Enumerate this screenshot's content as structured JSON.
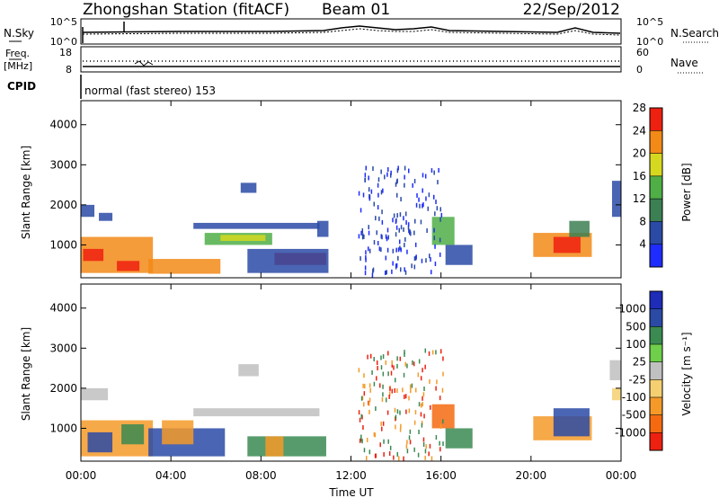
{
  "header": {
    "station": "Zhongshan Station (fitACF)",
    "beam": "Beam 01",
    "date": "22/Sep/2012",
    "mode": "normal (fast stereo) 153"
  },
  "noise_panel": {
    "left_label": "N.Sky",
    "right_label": "N.Search",
    "left_ticks": [
      "10^5",
      "10^0"
    ],
    "right_ticks": [
      "10^5",
      "10^0"
    ]
  },
  "freq_panel": {
    "left_label_1": "Freq.",
    "left_label_2": "[MHz]",
    "right_label": "Nave",
    "left_ticks": [
      "18",
      "8"
    ],
    "right_ticks": [
      "60",
      "0"
    ],
    "cpid_label": "CPID"
  },
  "chart_data": [
    {
      "type": "heatmap",
      "name": "power",
      "ylabel": "Slant Range [km]",
      "yticks": [
        1000,
        2000,
        3000,
        4000
      ],
      "ylim": [
        180,
        4600
      ],
      "xlim": [
        0,
        24
      ],
      "colorbar_label": "Power [dB]",
      "colorbar_ticks": [
        "4",
        "8",
        "12",
        "16",
        "20",
        "24",
        "28"
      ],
      "colorbar_colors": [
        "#1e2cff",
        "#2a4aa6",
        "#3c7f52",
        "#4fae46",
        "#d6d820",
        "#f28a18",
        "#ee2010"
      ],
      "regions": [
        {
          "t0": 0.0,
          "t1": 3.2,
          "r0": 300,
          "r1": 1200,
          "color": "#f28a18"
        },
        {
          "t0": 0.1,
          "t1": 1.0,
          "r0": 600,
          "r1": 900,
          "color": "#ee2010"
        },
        {
          "t0": 1.6,
          "t1": 2.6,
          "r0": 350,
          "r1": 600,
          "color": "#ee2010"
        },
        {
          "t0": 3.0,
          "t1": 6.2,
          "r0": 280,
          "r1": 650,
          "color": "#f28a18"
        },
        {
          "t0": 0.0,
          "t1": 0.6,
          "r0": 1700,
          "r1": 2000,
          "color": "#2a4aa6"
        },
        {
          "t0": 0.8,
          "t1": 1.4,
          "r0": 1600,
          "r1": 1800,
          "color": "#2a4aa6"
        },
        {
          "t0": 5.0,
          "t1": 10.6,
          "r0": 1400,
          "r1": 1550,
          "color": "#2a4aa6"
        },
        {
          "t0": 5.5,
          "t1": 8.5,
          "r0": 1000,
          "r1": 1300,
          "color": "#4fae46"
        },
        {
          "t0": 6.2,
          "t1": 8.2,
          "r0": 1100,
          "r1": 1250,
          "color": "#d6d820"
        },
        {
          "t0": 7.1,
          "t1": 7.8,
          "r0": 2300,
          "r1": 2550,
          "color": "#2a4aa6"
        },
        {
          "t0": 8.6,
          "t1": 10.9,
          "r0": 500,
          "r1": 800,
          "color": "#ee2010"
        },
        {
          "t0": 7.4,
          "t1": 11.0,
          "r0": 300,
          "r1": 900,
          "color": "#2a4aa6"
        },
        {
          "t0": 10.5,
          "t1": 11.0,
          "r0": 1200,
          "r1": 1600,
          "color": "#2a4aa6"
        },
        {
          "t0": 15.6,
          "t1": 16.6,
          "r0": 1000,
          "r1": 1700,
          "color": "#4fae46"
        },
        {
          "t0": 16.2,
          "t1": 17.4,
          "r0": 500,
          "r1": 1000,
          "color": "#2a4aa6"
        },
        {
          "t0": 20.1,
          "t1": 22.7,
          "r0": 700,
          "r1": 1300,
          "color": "#f28a18"
        },
        {
          "t0": 21.0,
          "t1": 22.2,
          "r0": 800,
          "r1": 1200,
          "color": "#ee2010"
        },
        {
          "t0": 21.7,
          "t1": 22.6,
          "r0": 1200,
          "r1": 1600,
          "color": "#3c7f52"
        },
        {
          "t0": 23.6,
          "t1": 24.0,
          "r0": 1700,
          "r1": 2600,
          "color": "#2a4aa6"
        }
      ]
    },
    {
      "type": "heatmap",
      "name": "velocity",
      "ylabel": "Slant Range [km]",
      "yticks": [
        1000,
        2000,
        3000,
        4000
      ],
      "ylim": [
        180,
        4600
      ],
      "xlim": [
        0,
        24
      ],
      "xticks": [
        "00:00",
        "04:00",
        "08:00",
        "12:00",
        "16:00",
        "20:00",
        "00:00"
      ],
      "xlabel": "Time UT",
      "colorbar_label": "Velocity [m s⁻¹]",
      "colorbar_ticks": [
        "-1000",
        "-500",
        "-100",
        "-25",
        "25",
        "100",
        "500",
        "1000"
      ],
      "colorbar_colors": [
        "#ee2010",
        "#f56a10",
        "#f59a28",
        "#f5d070",
        "#c0c0c0",
        "#6fcf4a",
        "#3a8a52",
        "#2a4aa6",
        "#1e2cb8"
      ],
      "regions": [
        {
          "t0": 0.0,
          "t1": 3.2,
          "r0": 300,
          "r1": 1200,
          "color": "#f59a28"
        },
        {
          "t0": 0.3,
          "t1": 1.4,
          "r0": 400,
          "r1": 900,
          "color": "#2a4aa6"
        },
        {
          "t0": 1.8,
          "t1": 2.8,
          "r0": 600,
          "r1": 1100,
          "color": "#3a8a52"
        },
        {
          "t0": 3.0,
          "t1": 6.4,
          "r0": 300,
          "r1": 1000,
          "color": "#2a4aa6"
        },
        {
          "t0": 3.6,
          "t1": 5.0,
          "r0": 600,
          "r1": 1200,
          "color": "#f59a28"
        },
        {
          "t0": 0.0,
          "t1": 1.2,
          "r0": 1700,
          "r1": 2000,
          "color": "#c0c0c0"
        },
        {
          "t0": 5.0,
          "t1": 10.6,
          "r0": 1300,
          "r1": 1500,
          "color": "#c0c0c0"
        },
        {
          "t0": 7.0,
          "t1": 7.9,
          "r0": 2300,
          "r1": 2600,
          "color": "#c0c0c0"
        },
        {
          "t0": 7.4,
          "t1": 10.9,
          "r0": 300,
          "r1": 800,
          "color": "#3a8a52"
        },
        {
          "t0": 8.2,
          "t1": 9.0,
          "r0": 300,
          "r1": 800,
          "color": "#f59a28"
        },
        {
          "t0": 15.6,
          "t1": 16.6,
          "r0": 1000,
          "r1": 1600,
          "color": "#f56a10"
        },
        {
          "t0": 16.2,
          "t1": 17.4,
          "r0": 500,
          "r1": 1000,
          "color": "#3a8a52"
        },
        {
          "t0": 20.1,
          "t1": 22.7,
          "r0": 700,
          "r1": 1300,
          "color": "#f59a28"
        },
        {
          "t0": 21.0,
          "t1": 22.6,
          "r0": 800,
          "r1": 1500,
          "color": "#2a4aa6"
        },
        {
          "t0": 23.5,
          "t1": 24.0,
          "r0": 2200,
          "r1": 2700,
          "color": "#c0c0c0"
        },
        {
          "t0": 23.6,
          "t1": 24.0,
          "r0": 1700,
          "r1": 2000,
          "color": "#f5d070"
        }
      ]
    }
  ]
}
